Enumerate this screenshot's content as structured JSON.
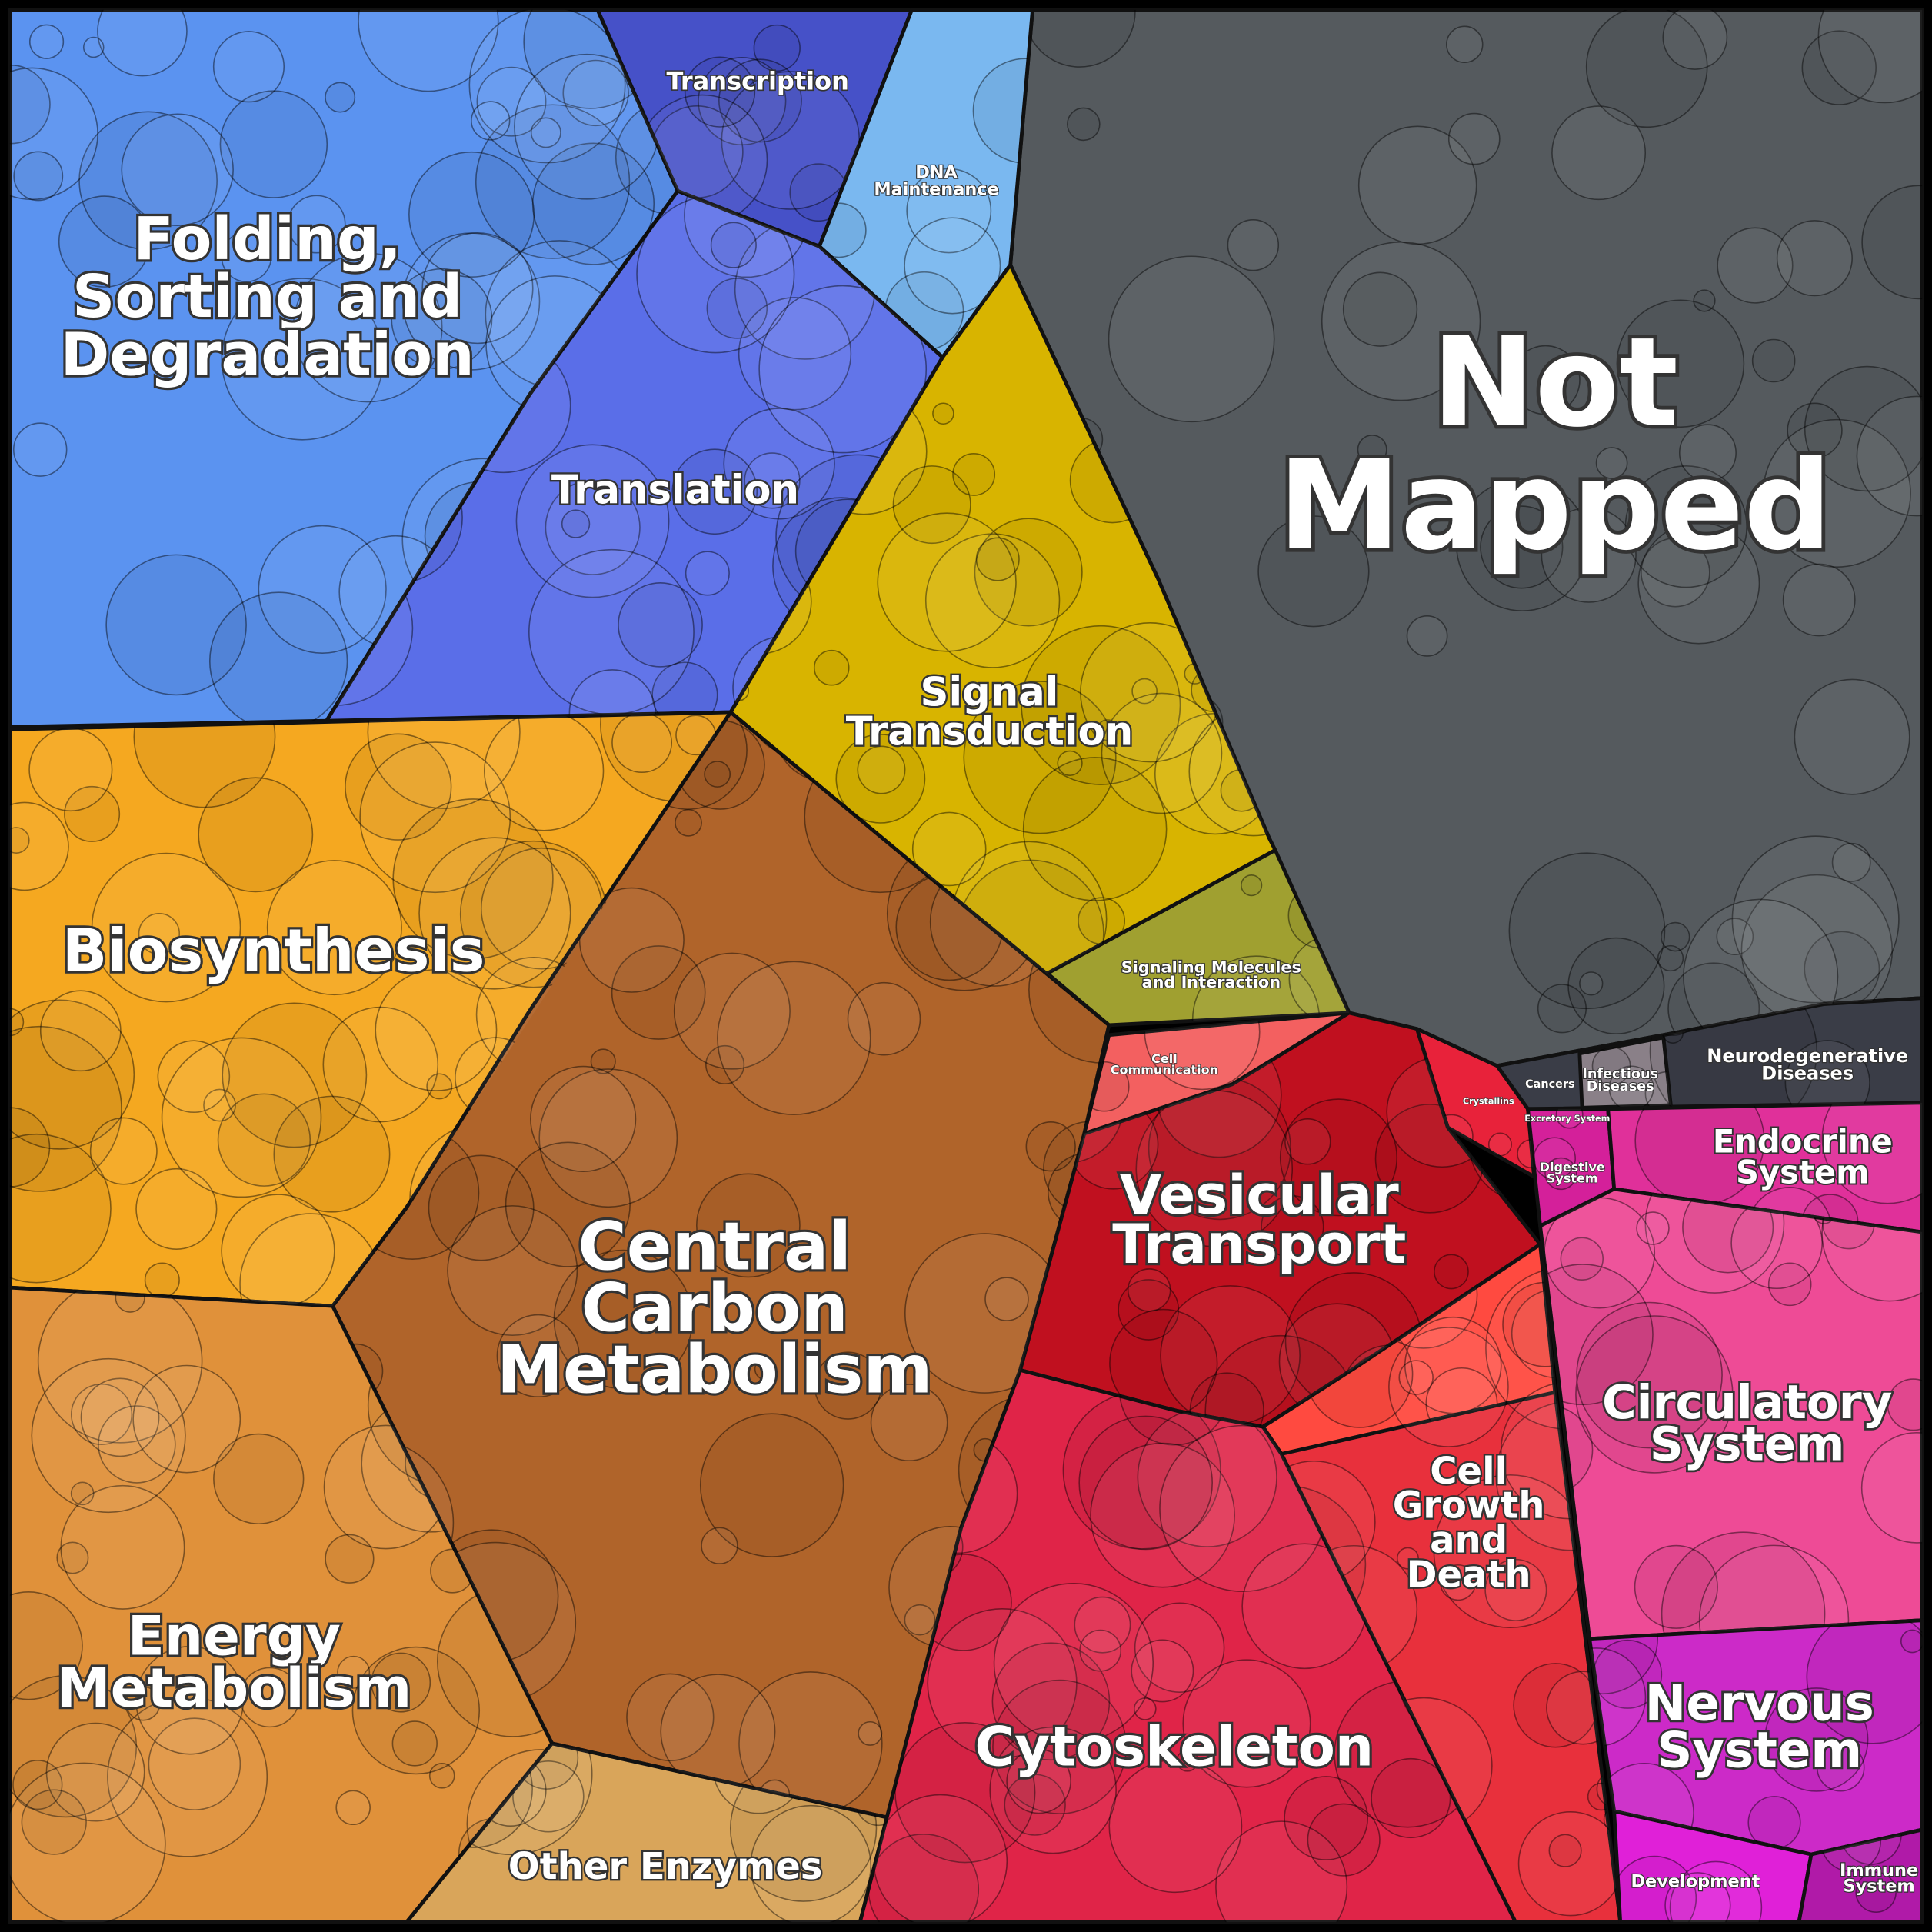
{
  "regions": [
    {
      "label": [
        "Not",
        "Mapped"
      ]
    },
    {
      "label": [
        "Folding,",
        "Sorting and",
        "Degradation"
      ]
    },
    {
      "label": "Transcription"
    },
    {
      "label": [
        "DNA",
        "Maintenance"
      ]
    },
    {
      "label": "Translation"
    },
    {
      "label": [
        "Signal",
        "Transduction"
      ]
    },
    {
      "label": [
        "Signaling Molecules",
        "and Interaction"
      ]
    },
    {
      "label": "Biosynthesis"
    },
    {
      "label": [
        "Central",
        "Carbon",
        "Metabolism"
      ]
    },
    {
      "label": [
        "Energy",
        "Metabolism"
      ]
    },
    {
      "label": "Other Enzymes"
    },
    {
      "label": [
        "Cell",
        "Communication"
      ]
    },
    {
      "label": [
        "Vesicular",
        "Transport"
      ]
    },
    {
      "label": "Crystallins"
    },
    {
      "label": [
        "Cell",
        "Growth",
        "and",
        "Death"
      ]
    },
    {
      "label": "Cytoskeleton"
    },
    {
      "label": "Cancers"
    },
    {
      "label": [
        "Infectious",
        "Diseases"
      ]
    },
    {
      "label": [
        "Neurodegenerative",
        "Diseases"
      ]
    },
    {
      "label": "Excretory System"
    },
    {
      "label": [
        "Digestive",
        "System"
      ]
    },
    {
      "label": [
        "Endocrine",
        "System"
      ]
    },
    {
      "label": [
        "Circulatory",
        "System"
      ]
    },
    {
      "label": [
        "Nervous",
        "System"
      ]
    },
    {
      "label": "Development"
    },
    {
      "label": [
        "Immune",
        "System"
      ]
    }
  ]
}
